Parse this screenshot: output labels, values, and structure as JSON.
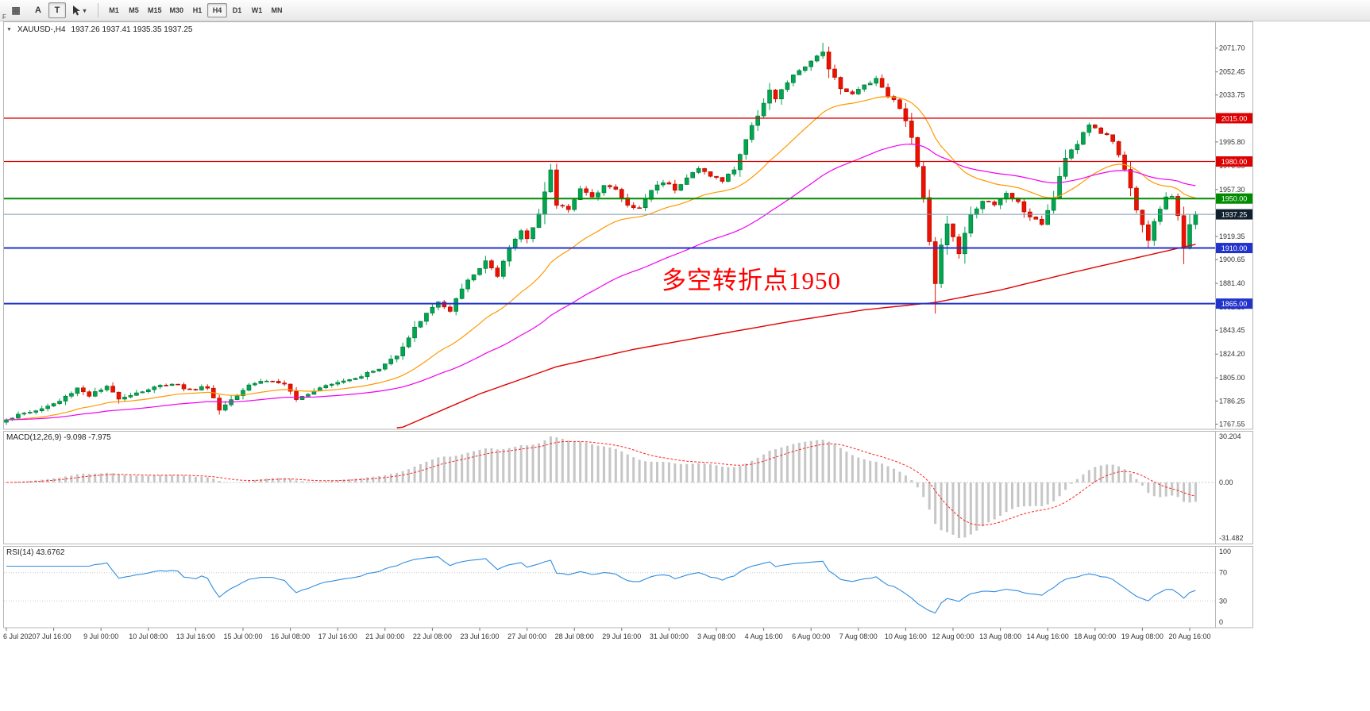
{
  "icons": {
    "collapse": "▼",
    "grid": "▦",
    "chevron_down": "▾"
  },
  "toolbar": {
    "f_label": "F",
    "tools": {
      "a_label": "A",
      "t_label": "T"
    },
    "timeframes": [
      "M1",
      "M5",
      "M15",
      "M30",
      "H1",
      "H4",
      "D1",
      "W1",
      "MN"
    ],
    "active_timeframe": "H4"
  },
  "chart": {
    "symbol_timeframe": "XAUUSD-,H4",
    "ohlc": "1937.26 1937.41 1935.35 1937.25",
    "annotation": {
      "text": "多空转折点1950",
      "color": "#FF0000"
    },
    "colors": {
      "up": "#00A651",
      "up_edge": "#00702F",
      "down": "#EE1100",
      "down_edge": "#A50D00",
      "ma_fast": "#FF9900",
      "ma_mid": "#F000F0",
      "ma_slow": "#E00000",
      "current_line": "#7D96AD",
      "current_box": "#10202C"
    }
  },
  "chart_data": {
    "type": "candlestick",
    "symbol": "XAUUSD-",
    "timeframe": "H4",
    "bars": 202,
    "price_range": {
      "top": 2092,
      "bottom": 1764
    },
    "y_ticks": [
      2071.7,
      2052.45,
      2033.75,
      2015.05,
      1995.8,
      1976.55,
      1957.3,
      1938.05,
      1919.35,
      1900.65,
      1881.4,
      1862.15,
      1843.45,
      1824.2,
      1805.0,
      1786.25,
      1767.55
    ],
    "x_labels": [
      "6 Jul 2020",
      "7 Jul 16:00",
      "9 Jul 00:00",
      "10 Jul 08:00",
      "13 Jul 16:00",
      "15 Jul 00:00",
      "16 Jul 08:00",
      "17 Jul 16:00",
      "21 Jul 00:00",
      "22 Jul 08:00",
      "23 Jul 16:00",
      "27 Jul 00:00",
      "28 Jul 08:00",
      "29 Jul 16:00",
      "31 Jul 00:00",
      "3 Aug 08:00",
      "4 Aug 16:00",
      "6 Aug 00:00",
      "7 Aug 08:00",
      "10 Aug 16:00",
      "12 Aug 00:00",
      "13 Aug 08:00",
      "14 Aug 16:00",
      "18 Aug 00:00",
      "19 Aug 08:00",
      "20 Aug 16:00"
    ],
    "levels": [
      {
        "price": 2015.0,
        "label": "2015.00",
        "color": "#DD0000",
        "width": 1.3
      },
      {
        "price": 1980.0,
        "label": "1980.00",
        "color": "#DD0000",
        "width": 1.3
      },
      {
        "price": 1950.0,
        "label": "1950.00",
        "color": "#008C00",
        "width": 2
      },
      {
        "price": 1910.0,
        "label": "1910.00",
        "color": "#2233CC",
        "width": 2
      },
      {
        "price": 1865.0,
        "label": "1865.00",
        "color": "#2233CC",
        "width": 2
      }
    ],
    "current_price": {
      "value": 1937.25,
      "label": "1937.25"
    },
    "close_anchors": [
      [
        0,
        1772
      ],
      [
        3,
        1776
      ],
      [
        6,
        1780
      ],
      [
        9,
        1786
      ],
      [
        12,
        1797
      ],
      [
        14,
        1791
      ],
      [
        17,
        1797
      ],
      [
        19,
        1789
      ],
      [
        22,
        1793
      ],
      [
        25,
        1797
      ],
      [
        28,
        1801
      ],
      [
        31,
        1795
      ],
      [
        34,
        1798
      ],
      [
        36,
        1779
      ],
      [
        38,
        1788
      ],
      [
        41,
        1800
      ],
      [
        44,
        1803
      ],
      [
        47,
        1800
      ],
      [
        49,
        1786
      ],
      [
        51,
        1793
      ],
      [
        54,
        1800
      ],
      [
        57,
        1803
      ],
      [
        60,
        1807
      ],
      [
        63,
        1812
      ],
      [
        66,
        1824
      ],
      [
        69,
        1845
      ],
      [
        71,
        1858
      ],
      [
        73,
        1866
      ],
      [
        75,
        1858
      ],
      [
        77,
        1878
      ],
      [
        79,
        1888
      ],
      [
        81,
        1900
      ],
      [
        83,
        1886
      ],
      [
        85,
        1910
      ],
      [
        87,
        1924
      ],
      [
        88,
        1918
      ],
      [
        90,
        1938
      ],
      [
        92,
        1972
      ],
      [
        93,
        1945
      ],
      [
        95,
        1942
      ],
      [
        97,
        1958
      ],
      [
        99,
        1950
      ],
      [
        101,
        1962
      ],
      [
        103,
        1957
      ],
      [
        105,
        1944
      ],
      [
        107,
        1942
      ],
      [
        109,
        1957
      ],
      [
        111,
        1964
      ],
      [
        113,
        1958
      ],
      [
        115,
        1967
      ],
      [
        117,
        1974
      ],
      [
        119,
        1969
      ],
      [
        121,
        1964
      ],
      [
        123,
        1974
      ],
      [
        125,
        1998
      ],
      [
        127,
        2018
      ],
      [
        129,
        2038
      ],
      [
        130,
        2030
      ],
      [
        132,
        2044
      ],
      [
        134,
        2054
      ],
      [
        136,
        2060
      ],
      [
        138,
        2069
      ],
      [
        139,
        2056
      ],
      [
        141,
        2040
      ],
      [
        143,
        2034
      ],
      [
        145,
        2042
      ],
      [
        147,
        2047
      ],
      [
        149,
        2034
      ],
      [
        151,
        2024
      ],
      [
        153,
        2000
      ],
      [
        154,
        1975
      ],
      [
        155,
        1952
      ],
      [
        156,
        1916
      ],
      [
        157,
        1882
      ],
      [
        158,
        1912
      ],
      [
        159,
        1930
      ],
      [
        161,
        1906
      ],
      [
        163,
        1936
      ],
      [
        165,
        1949
      ],
      [
        167,
        1944
      ],
      [
        169,
        1954
      ],
      [
        171,
        1947
      ],
      [
        173,
        1934
      ],
      [
        175,
        1930
      ],
      [
        177,
        1952
      ],
      [
        179,
        1984
      ],
      [
        181,
        1994
      ],
      [
        183,
        2010
      ],
      [
        185,
        2004
      ],
      [
        187,
        1997
      ],
      [
        189,
        1974
      ],
      [
        191,
        1942
      ],
      [
        193,
        1917
      ],
      [
        194,
        1932
      ],
      [
        196,
        1950
      ],
      [
        197,
        1952
      ],
      [
        198,
        1937
      ],
      [
        199,
        1910
      ],
      [
        200,
        1928
      ],
      [
        201,
        1937.25
      ]
    ],
    "wick_overrides": [
      [
        92,
        1978,
        "high"
      ],
      [
        138,
        2076,
        "high"
      ],
      [
        157,
        1857,
        "low"
      ],
      [
        199,
        1897,
        "low"
      ]
    ],
    "moving_averages": [
      {
        "name": "fast",
        "type": "ema",
        "period": 24,
        "color_key": "ma_fast"
      },
      {
        "name": "mid",
        "type": "ema",
        "period": 60,
        "color_key": "ma_mid"
      }
    ],
    "slow_ma_path": [
      [
        66,
        1763
      ],
      [
        80,
        1792
      ],
      [
        93,
        1814
      ],
      [
        106,
        1828
      ],
      [
        120,
        1840
      ],
      [
        133,
        1851
      ],
      [
        145,
        1860
      ],
      [
        157,
        1866
      ],
      [
        168,
        1876
      ],
      [
        180,
        1890
      ],
      [
        190,
        1901
      ],
      [
        201,
        1913
      ]
    ]
  },
  "macd": {
    "label": "MACD(12,26,9) -9.098 -7.975",
    "fast": 12,
    "slow": 26,
    "signal": 9,
    "value": -9.098,
    "signal_value": -7.975,
    "scale_max": "30.204",
    "scale_zero": "0.00",
    "scale_min": "-31.482",
    "hist_color": "#C6C6C6",
    "signal_color": "#FF2222"
  },
  "rsi": {
    "label": "RSI(14) 43.6762",
    "period": 14,
    "value": 43.6762,
    "scale": [
      "100",
      "70",
      "30",
      "0"
    ],
    "levels": [
      70,
      30
    ],
    "line_color": "#2F8DE0"
  }
}
